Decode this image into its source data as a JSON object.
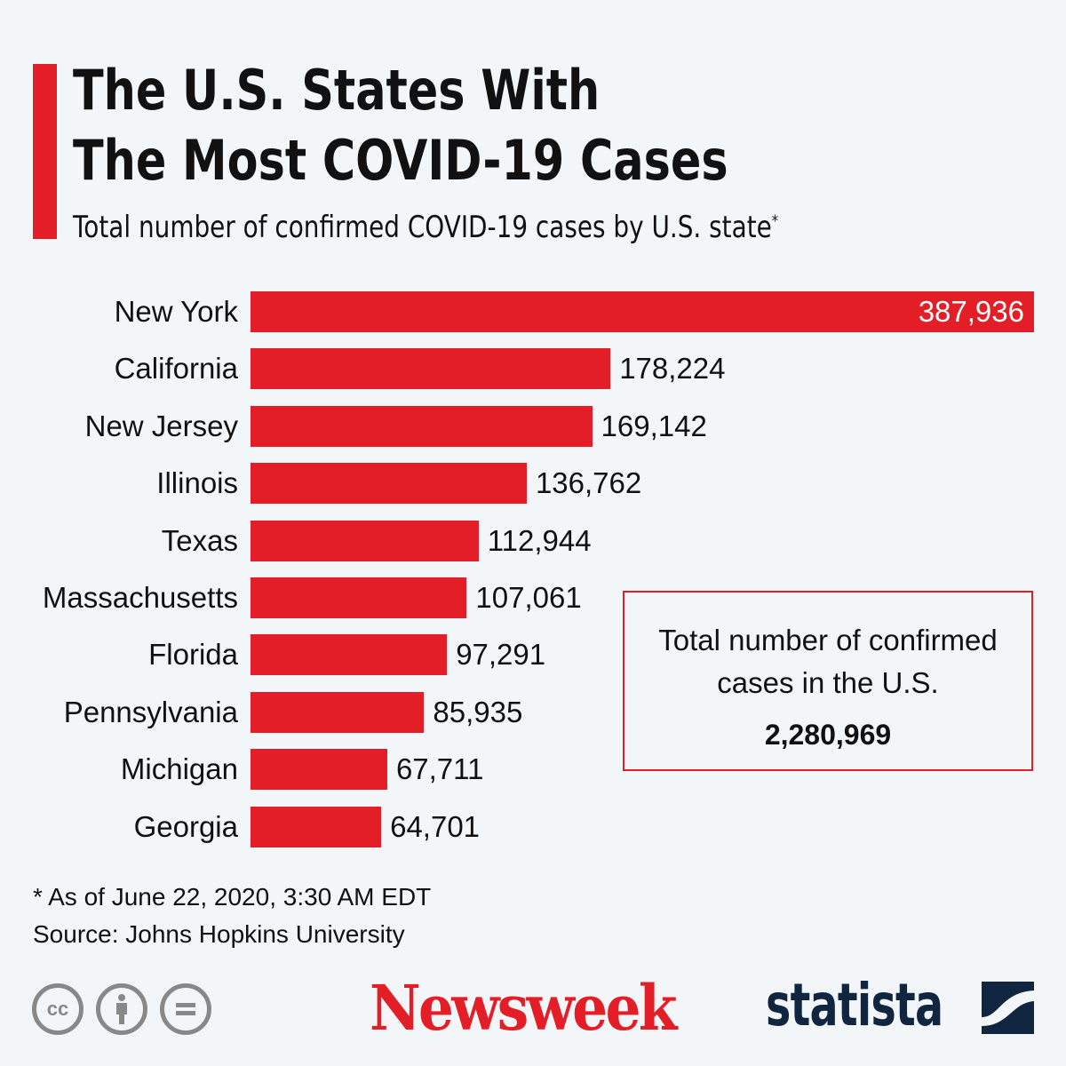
{
  "title_line1": "The U.S. States With",
  "title_line2": "The Most COVID-19 Cases",
  "subtitle": "Total number of confirmed COVID-19 cases by U.S. state",
  "subtitle_mark": "*",
  "chart_data": {
    "type": "bar",
    "orientation": "horizontal",
    "title": "The U.S. States With The Most COVID-19 Cases",
    "categories": [
      "New York",
      "California",
      "New Jersey",
      "Illinois",
      "Texas",
      "Massachusetts",
      "Florida",
      "Pennsylvania",
      "Michigan",
      "Georgia"
    ],
    "values": [
      387936,
      178224,
      169142,
      136762,
      112944,
      107061,
      97291,
      85935,
      67711,
      64701
    ],
    "value_labels": [
      "387,936",
      "178,224",
      "169,142",
      "136,762",
      "112,944",
      "107,061",
      "97,291",
      "85,935",
      "67,711",
      "64,701"
    ],
    "xlim": [
      0,
      387936
    ],
    "color": "#e31e26",
    "grid": false
  },
  "total_box": {
    "line1": "Total number of confirmed",
    "line2": "cases in the U.S.",
    "value": "2,280,969"
  },
  "footnote": "* As of June 22, 2020, 3:30 AM EDT",
  "source": "Source: Johns Hopkins University",
  "logos": {
    "newsweek": "Newsweek",
    "statista": "statista"
  }
}
